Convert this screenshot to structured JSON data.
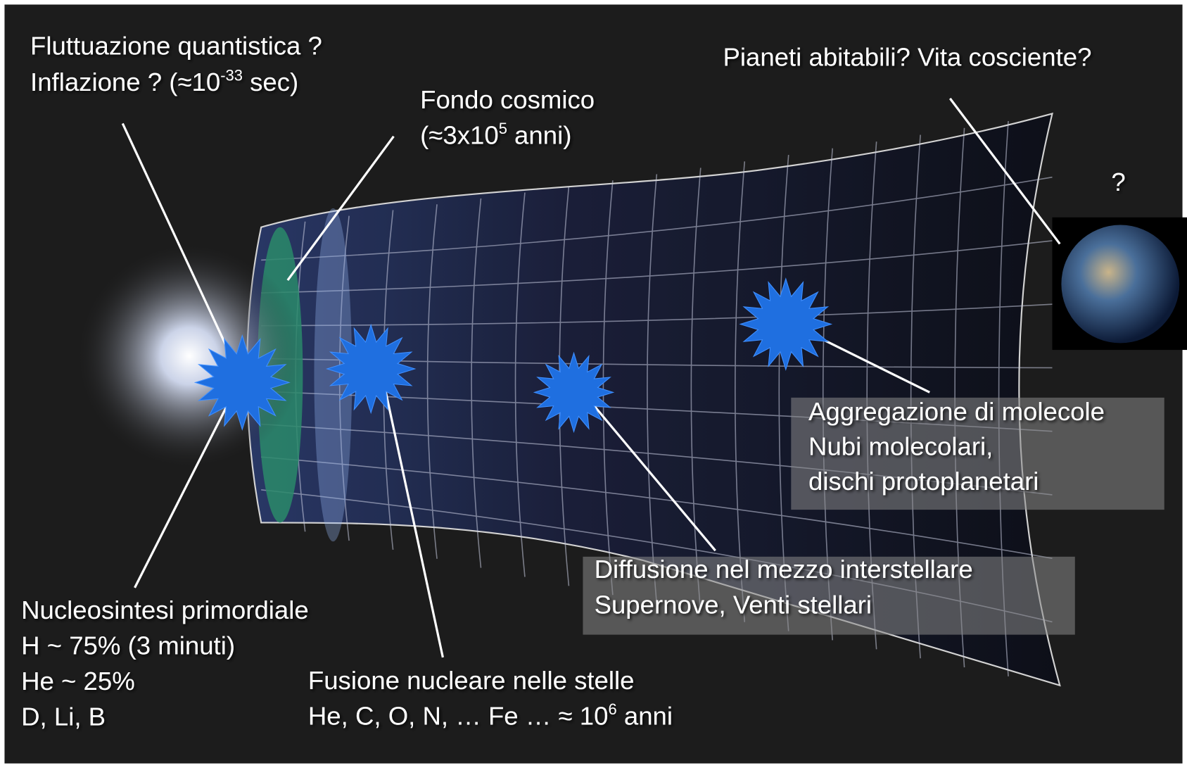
{
  "labels": [
    {
      "lines": [
        [
          "Fluttuazione quantistica ?"
        ],
        [
          "Inflazione ? (≈10",
          "-33",
          " sec)"
        ]
      ]
    },
    {
      "lines": [
        [
          "Fondo cosmico"
        ],
        [
          "(≈3x10",
          "5",
          " anni)"
        ]
      ]
    },
    {
      "lines": [
        [
          "Pianeti abitabili? Vita cosciente?"
        ]
      ]
    },
    {
      "lines": [
        [
          "?"
        ]
      ]
    },
    {
      "lines": [
        [
          "Aggregazione di molecole"
        ],
        [
          "Nubi molecolari,"
        ],
        [
          "dischi protoplanetari"
        ]
      ]
    },
    {
      "lines": [
        [
          "Diffusione nel mezzo interstellare"
        ],
        [
          "Supernove, Venti stellari"
        ]
      ]
    },
    {
      "lines": [
        [
          "Nucleosintesi primordiale"
        ],
        [
          "H ~ 75%  (3 minuti)"
        ],
        [
          "He ~ 25%"
        ],
        [
          "D, Li, B"
        ]
      ]
    },
    {
      "lines": [
        [
          "Fusione nucleare nelle stelle"
        ],
        [
          "He, C, O, N, … Fe … ≈ 10",
          "6",
          " anni"
        ]
      ]
    }
  ]
}
